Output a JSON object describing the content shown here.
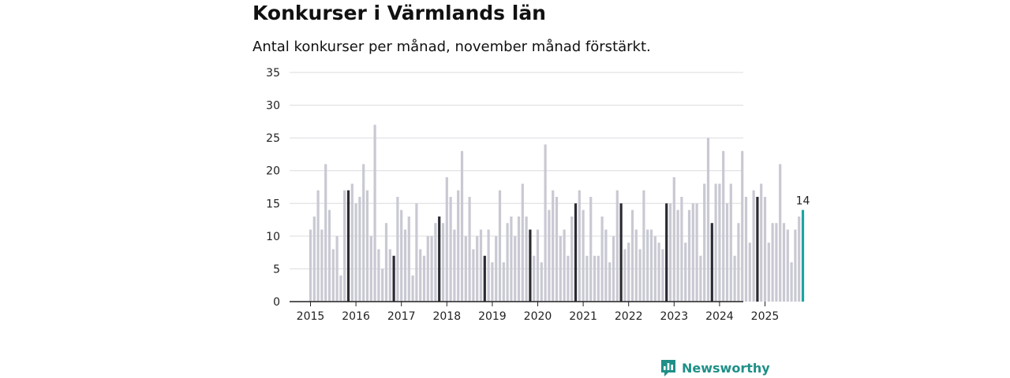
{
  "title": "Konkurser i Värmlands län",
  "subtitle": "Antal konkurser per månad, november månad förstärkt.",
  "brand": "Newsworthy",
  "colors": {
    "bar": "#c9c9d3",
    "highlight": "#2b2b33",
    "latest": "#1aa6a0",
    "axis": "#222222",
    "grid": "#dcdce0",
    "brand": "#1f8f88"
  },
  "chart_data": {
    "type": "bar",
    "title": "Konkurser i Värmlands län",
    "subtitle": "Antal konkurser per månad, november månad förstärkt.",
    "xlabel": "",
    "ylabel": "",
    "ylim": [
      0,
      35
    ],
    "yticks": [
      0,
      5,
      10,
      15,
      20,
      25,
      30,
      35
    ],
    "xtick_labels": [
      "2015",
      "2016",
      "2017",
      "2018",
      "2019",
      "2020",
      "2021",
      "2022",
      "2023",
      "2024",
      "2025"
    ],
    "start": "2015-01",
    "highlight_month": "november",
    "latest_label": "14",
    "values": [
      11,
      13,
      17,
      11,
      21,
      14,
      8,
      10,
      4,
      17,
      17,
      18,
      15,
      16,
      21,
      17,
      10,
      27,
      8,
      5,
      12,
      8,
      7,
      16,
      14,
      11,
      13,
      4,
      15,
      8,
      7,
      10,
      10,
      12,
      13,
      12,
      19,
      16,
      11,
      17,
      23,
      10,
      16,
      8,
      10,
      11,
      7,
      11,
      6,
      10,
      17,
      6,
      12,
      13,
      10,
      13,
      18,
      13,
      11,
      7,
      11,
      6,
      24,
      14,
      17,
      16,
      10,
      11,
      7,
      13,
      15,
      17,
      14,
      7,
      16,
      7,
      7,
      13,
      11,
      6,
      10,
      17,
      15,
      8,
      9,
      14,
      11,
      8,
      17,
      11,
      11,
      10,
      9,
      8,
      15,
      15,
      19,
      14,
      16,
      9,
      14,
      15,
      15,
      7,
      18,
      25,
      12,
      18,
      18,
      23,
      15,
      18,
      7,
      12,
      23,
      16,
      9,
      17,
      16,
      18,
      16,
      9,
      12,
      12,
      21,
      12,
      11,
      6,
      11,
      13,
      14
    ]
  }
}
